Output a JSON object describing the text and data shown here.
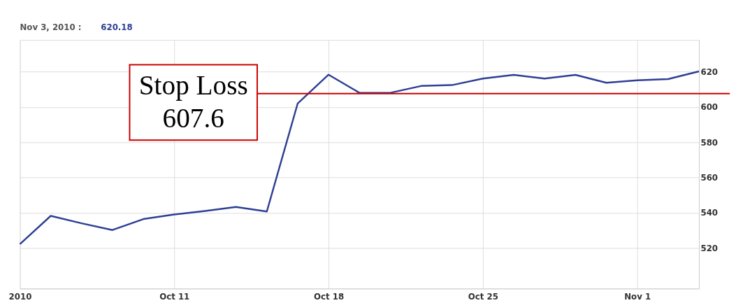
{
  "chart_data": {
    "type": "line",
    "categories": [
      "2010",
      null,
      null,
      null,
      null,
      "Oct 11",
      null,
      null,
      null,
      null,
      "Oct 18",
      null,
      null,
      null,
      null,
      "Oct 25",
      null,
      null,
      null,
      null,
      "Nov 1",
      null,
      null
    ],
    "series": [
      {
        "color": "#2e3f94",
        "values": [
          522.2,
          538.2,
          534,
          530.2,
          536.4,
          539,
          541,
          543.3,
          540.7,
          602,
          618.3,
          608,
          608,
          611.9,
          612.4,
          616.1,
          618.2,
          616.1,
          618.2,
          613.7,
          615.1,
          615.8,
          620.18
        ]
      }
    ],
    "ylim": [
      497,
      638
    ],
    "yticks": [
      520,
      540,
      560,
      580,
      600,
      620
    ],
    "grid": true,
    "marker": "none",
    "line_style": "solid",
    "ref_lines": [
      {
        "axis": "y",
        "value": 607.6,
        "label": "Stop Loss\n607.6",
        "color": "#cc0000"
      }
    ],
    "annotations": [
      "Nov 3, 2010 :",
      "620.18"
    ]
  }
}
